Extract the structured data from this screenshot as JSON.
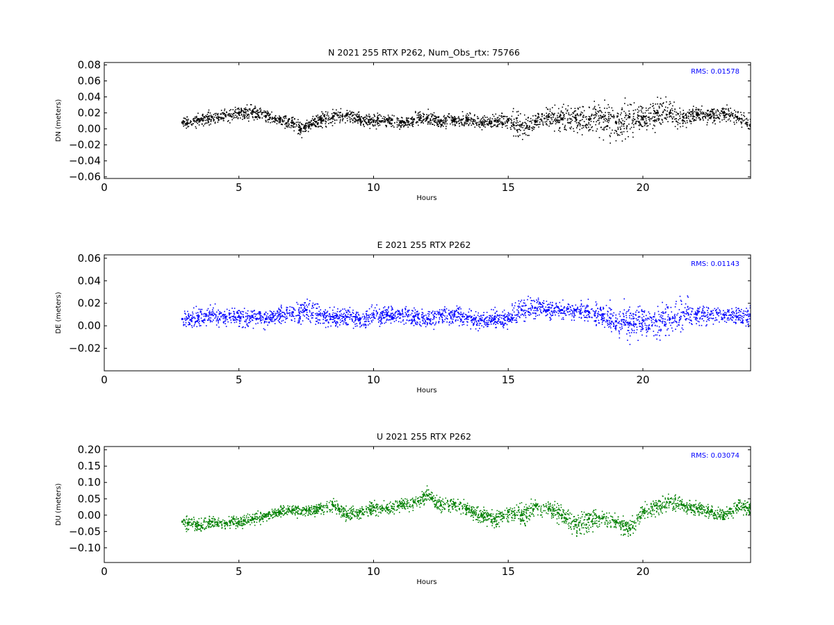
{
  "chart_data": [
    {
      "type": "scatter",
      "title": "N 2021 255 RTX  P262, Num_Obs_rtx: 75766",
      "xlabel": "Hours",
      "ylabel": "DN (meters)",
      "xlim": [
        0,
        24
      ],
      "ylim": [
        -0.062,
        0.083
      ],
      "xticks": [
        "0",
        "5",
        "10",
        "15",
        "20"
      ],
      "yticks": [
        "0.08",
        "0.06",
        "0.04",
        "0.02",
        "0.00",
        "−0.02",
        "−0.04",
        "−0.06"
      ],
      "series": [
        {
          "color": "#000000",
          "x": [
            2.9,
            3.5,
            4.0,
            4.5,
            5.0,
            5.5,
            6.0,
            6.5,
            7.0,
            7.3,
            8.0,
            8.5,
            9.0,
            9.5,
            10.0,
            10.5,
            11.0,
            11.5,
            12.0,
            12.5,
            13.0,
            13.5,
            14.0,
            14.5,
            15.0,
            15.5,
            16.0,
            16.5,
            17.0,
            17.5,
            18.0,
            18.5,
            19.0,
            19.5,
            20.0,
            20.5,
            21.0,
            21.5,
            22.0,
            22.5,
            23.0,
            23.5,
            24.0
          ],
          "y": [
            0.008,
            0.012,
            0.015,
            0.017,
            0.02,
            0.022,
            0.016,
            0.012,
            0.008,
            0.0,
            0.012,
            0.016,
            0.018,
            0.012,
            0.01,
            0.012,
            0.008,
            0.012,
            0.014,
            0.01,
            0.012,
            0.012,
            0.008,
            0.01,
            0.012,
            0.005,
            0.01,
            0.015,
            0.012,
            0.014,
            0.012,
            0.015,
            0.008,
            0.015,
            0.012,
            0.02,
            0.02,
            0.015,
            0.018,
            0.018,
            0.02,
            0.015,
            0.005
          ],
          "spread": [
            0.01,
            0.012,
            0.013,
            0.013,
            0.014,
            0.014,
            0.012,
            0.012,
            0.012,
            0.012,
            0.012,
            0.014,
            0.012,
            0.012,
            0.012,
            0.011,
            0.01,
            0.012,
            0.013,
            0.012,
            0.012,
            0.012,
            0.012,
            0.012,
            0.014,
            0.03,
            0.014,
            0.018,
            0.024,
            0.028,
            0.026,
            0.03,
            0.032,
            0.03,
            0.022,
            0.026,
            0.024,
            0.02,
            0.014,
            0.014,
            0.014,
            0.014,
            0.012
          ]
        }
      ],
      "annotation": "RMS:  0.01578",
      "annotation_color": "#0000ff"
    },
    {
      "type": "scatter",
      "title": "E 2021 255 RTX  P262",
      "xlabel": "Hours",
      "ylabel": "DE (meters)",
      "xlim": [
        0,
        24
      ],
      "ylim": [
        -0.04,
        0.063
      ],
      "xticks": [
        "0",
        "5",
        "10",
        "15",
        "20"
      ],
      "yticks": [
        "0.06",
        "0.04",
        "0.02",
        "0.00",
        "−0.02"
      ],
      "series": [
        {
          "color": "#0000ff",
          "x": [
            2.9,
            3.5,
            4.0,
            4.5,
            5.0,
            5.5,
            6.0,
            6.5,
            7.0,
            7.5,
            8.0,
            8.5,
            9.0,
            9.5,
            10.0,
            10.5,
            11.0,
            11.5,
            12.0,
            12.5,
            13.0,
            13.5,
            14.0,
            14.5,
            15.0,
            15.5,
            16.0,
            16.5,
            17.0,
            17.5,
            18.0,
            18.5,
            19.0,
            19.5,
            20.0,
            20.5,
            21.0,
            21.5,
            22.0,
            22.5,
            23.0,
            23.5,
            24.0
          ],
          "y": [
            0.006,
            0.008,
            0.01,
            0.008,
            0.008,
            0.008,
            0.006,
            0.01,
            0.012,
            0.014,
            0.01,
            0.008,
            0.008,
            0.006,
            0.01,
            0.01,
            0.01,
            0.008,
            0.006,
            0.01,
            0.01,
            0.008,
            0.005,
            0.006,
            0.006,
            0.014,
            0.016,
            0.014,
            0.014,
            0.014,
            0.012,
            0.01,
            0.004,
            0.002,
            0.005,
            0.004,
            0.006,
            0.012,
            0.01,
            0.01,
            0.01,
            0.008,
            0.01
          ],
          "spread": [
            0.01,
            0.012,
            0.012,
            0.012,
            0.012,
            0.012,
            0.011,
            0.012,
            0.013,
            0.013,
            0.012,
            0.012,
            0.012,
            0.012,
            0.012,
            0.012,
            0.011,
            0.012,
            0.012,
            0.012,
            0.011,
            0.011,
            0.012,
            0.012,
            0.013,
            0.02,
            0.013,
            0.011,
            0.011,
            0.012,
            0.013,
            0.016,
            0.022,
            0.022,
            0.018,
            0.02,
            0.022,
            0.02,
            0.013,
            0.012,
            0.012,
            0.012,
            0.012
          ]
        }
      ],
      "annotation": "RMS:  0.01143",
      "annotation_color": "#0000ff"
    },
    {
      "type": "scatter",
      "title": "U 2021 255 RTX  P262",
      "xlabel": "Hours",
      "ylabel": "DU (meters)",
      "xlim": [
        0,
        24
      ],
      "ylim": [
        -0.145,
        0.21
      ],
      "xticks": [
        "0",
        "5",
        "10",
        "15",
        "20"
      ],
      "yticks": [
        "0.20",
        "0.15",
        "0.10",
        "0.05",
        "0.00",
        "−0.05",
        "−0.10"
      ],
      "series": [
        {
          "color": "#008000",
          "x": [
            2.9,
            3.5,
            4.0,
            4.5,
            5.0,
            5.5,
            6.0,
            6.5,
            7.0,
            7.5,
            8.0,
            8.5,
            9.0,
            9.5,
            10.0,
            10.5,
            11.0,
            11.5,
            12.0,
            12.5,
            13.0,
            13.5,
            14.0,
            14.5,
            15.0,
            15.5,
            16.0,
            16.5,
            17.0,
            17.5,
            18.0,
            18.5,
            19.0,
            19.5,
            20.0,
            20.5,
            21.0,
            21.5,
            22.0,
            22.5,
            23.0,
            23.5,
            24.0
          ],
          "y": [
            -0.02,
            -0.03,
            -0.02,
            -0.025,
            -0.02,
            -0.01,
            0.0,
            0.01,
            0.015,
            0.015,
            0.02,
            0.03,
            0.0,
            0.01,
            0.025,
            0.02,
            0.035,
            0.04,
            0.06,
            0.03,
            0.035,
            0.02,
            0.0,
            -0.01,
            0.01,
            0.0,
            0.03,
            0.02,
            0.0,
            -0.03,
            -0.01,
            -0.01,
            -0.02,
            -0.04,
            0.01,
            0.03,
            0.04,
            0.03,
            0.02,
            0.01,
            0.0,
            0.03,
            0.02
          ],
          "spread": [
            0.03,
            0.03,
            0.025,
            0.025,
            0.025,
            0.025,
            0.025,
            0.025,
            0.025,
            0.025,
            0.025,
            0.03,
            0.03,
            0.03,
            0.03,
            0.03,
            0.03,
            0.03,
            0.035,
            0.03,
            0.03,
            0.03,
            0.035,
            0.035,
            0.035,
            0.05,
            0.035,
            0.035,
            0.04,
            0.05,
            0.05,
            0.04,
            0.035,
            0.04,
            0.035,
            0.035,
            0.035,
            0.03,
            0.03,
            0.03,
            0.03,
            0.03,
            0.03
          ]
        }
      ],
      "annotation": "RMS:  0.03074",
      "annotation_color": "#0000ff"
    }
  ]
}
